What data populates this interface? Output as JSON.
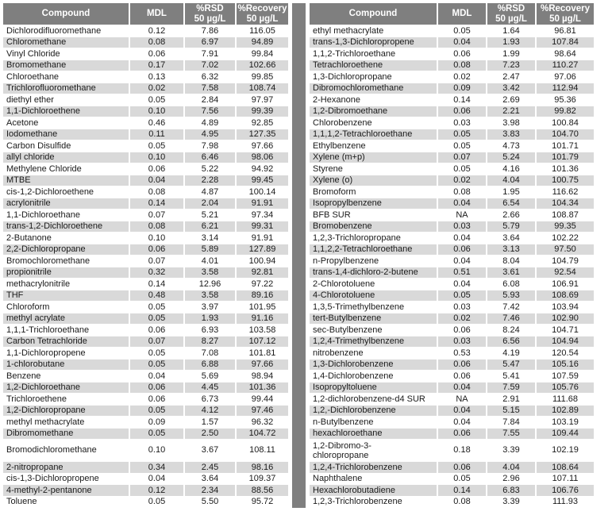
{
  "colors": {
    "header_bg": "#7f7f7f",
    "header_text": "#ffffff",
    "row_bg": "#ffffff",
    "row_alt_bg": "#d9d9d9",
    "divider": "#7f7f7f",
    "text": "#1a1a1a"
  },
  "columns": {
    "compound": "Compound",
    "mdl": "MDL",
    "rsd_label": "%RSD",
    "recovery_label": "%Recovery",
    "concentration": "50 µg/L"
  },
  "left_table": {
    "tall_row_index": 36,
    "rows": [
      [
        "Dichlorodifluoromethane",
        "0.12",
        "7.86",
        "116.05"
      ],
      [
        "Chloromethane",
        "0.08",
        "6.97",
        "94.89"
      ],
      [
        "Vinyl Chloride",
        "0.06",
        "7.91",
        "99.84"
      ],
      [
        "Bromomethane",
        "0.17",
        "7.02",
        "102.66"
      ],
      [
        "Chloroethane",
        "0.13",
        "6.32",
        "99.85"
      ],
      [
        "Trichlorofluoromethane",
        "0.02",
        "7.58",
        "108.74"
      ],
      [
        "diethyl ether",
        "0.05",
        "2.84",
        "97.97"
      ],
      [
        "1,1-Dichloroethene",
        "0.10",
        "7.56",
        "99.39"
      ],
      [
        "Acetone",
        "0.46",
        "4.89",
        "92.85"
      ],
      [
        "Iodomethane",
        "0.11",
        "4.95",
        "127.35"
      ],
      [
        "Carbon Disulfide",
        "0.05",
        "7.98",
        "97.66"
      ],
      [
        "allyl chloride",
        "0.10",
        "6.46",
        "98.06"
      ],
      [
        "Methylene Chloride",
        "0.06",
        "5.22",
        "94.92"
      ],
      [
        "MTBE",
        "0.04",
        "2.28",
        "99.45"
      ],
      [
        "cis-1,2-Dichloroethene",
        "0.08",
        "4.87",
        "100.14"
      ],
      [
        "acrylonitrile",
        "0.14",
        "2.04",
        "91.91"
      ],
      [
        "1,1-Dichloroethane",
        "0.07",
        "5.21",
        "97.34"
      ],
      [
        "trans-1,2-Dichloroethene",
        "0.08",
        "6.21",
        "99.31"
      ],
      [
        "2-Butanone",
        "0.10",
        "3.14",
        "91.91"
      ],
      [
        "2,2-Dichloropropane",
        "0.06",
        "5.89",
        "127.89"
      ],
      [
        "Bromochloromethane",
        "0.07",
        "4.01",
        "100.94"
      ],
      [
        "propionitrile",
        "0.32",
        "3.58",
        "92.81"
      ],
      [
        "methacrylonitrile",
        "0.14",
        "12.96",
        "97.22"
      ],
      [
        "THF",
        "0.48",
        "3.58",
        "89.16"
      ],
      [
        "Chloroform",
        "0.05",
        "3.97",
        "101.95"
      ],
      [
        "methyl acrylate",
        "0.05",
        "1.93",
        "91.16"
      ],
      [
        "1,1,1-Trichloroethane",
        "0.06",
        "6.93",
        "103.58"
      ],
      [
        "Carbon Tetrachloride",
        "0.07",
        "8.27",
        "107.12"
      ],
      [
        "1,1-Dichloropropene",
        "0.05",
        "7.08",
        "101.81"
      ],
      [
        "1-chlorobutane",
        "0.05",
        "6.88",
        "97.66"
      ],
      [
        "Benzene",
        "0.04",
        "5.69",
        "98.94"
      ],
      [
        "1,2-Dichloroethane",
        "0.06",
        "4.45",
        "101.36"
      ],
      [
        "Trichloroethene",
        "0.06",
        "6.73",
        "99.44"
      ],
      [
        "1,2-Dichloropropane",
        "0.05",
        "4.12",
        "97.46"
      ],
      [
        "methyl methacrylate",
        "0.09",
        "1.57",
        "96.32"
      ],
      [
        "Dibromomethane",
        "0.05",
        "2.50",
        "104.72"
      ],
      [
        "Bromodichloromethane",
        "0.10",
        "3.67",
        "108.11"
      ],
      [
        "2-nitropropane",
        "0.34",
        "2.45",
        "98.16"
      ],
      [
        "cis-1,3-Dichloropropene",
        "0.04",
        "3.64",
        "109.37"
      ],
      [
        "4-methyl-2-pentanone",
        "0.12",
        "2.34",
        "88.56"
      ],
      [
        "Toluene",
        "0.05",
        "5.50",
        "95.72"
      ]
    ]
  },
  "right_table": {
    "tall_row_index": 36,
    "rows": [
      [
        "ethyl methacrylate",
        "0.05",
        "1.64",
        "96.81"
      ],
      [
        "trans-1,3-Dichloropropene",
        "0.04",
        "1.93",
        "107.84"
      ],
      [
        "1,1,2-Trichloroethane",
        "0.06",
        "1.99",
        "98.64"
      ],
      [
        "Tetrachloroethene",
        "0.08",
        "7.23",
        "110.27"
      ],
      [
        "1,3-Dichloropropane",
        "0.02",
        "2.47",
        "97.06"
      ],
      [
        "Dibromochloromethane",
        "0.09",
        "3.42",
        "112.94"
      ],
      [
        "2-Hexanone",
        "0.14",
        "2.69",
        "95.36"
      ],
      [
        "1,2-Dibromoethane",
        "0.06",
        "2.21",
        "99.82"
      ],
      [
        "Chlorobenzene",
        "0.03",
        "3.98",
        "100.84"
      ],
      [
        "1,1,1,2-Tetrachloroethane",
        "0.05",
        "3.83",
        "104.70"
      ],
      [
        "Ethylbenzene",
        "0.05",
        "4.73",
        "101.71"
      ],
      [
        "Xylene (m+p)",
        "0.07",
        "5.24",
        "101.79"
      ],
      [
        "Styrene",
        "0.05",
        "4.16",
        "101.36"
      ],
      [
        "Xylene (o)",
        "0.02",
        "4.04",
        "100.75"
      ],
      [
        "Bromoform",
        "0.08",
        "1.95",
        "116.62"
      ],
      [
        "Isopropylbenzene",
        "0.04",
        "6.54",
        "104.34"
      ],
      [
        "BFB SUR",
        "NA",
        "2.66",
        "108.87"
      ],
      [
        "Bromobenzene",
        "0.03",
        "5.79",
        "99.35"
      ],
      [
        "1,2,3-Trichloropropane",
        "0.04",
        "3.64",
        "102.22"
      ],
      [
        "1,1,2,2-Tetrachloroethane",
        "0.06",
        "3.13",
        "97.50"
      ],
      [
        "n-Propylbenzene",
        "0.04",
        "8.04",
        "104.79"
      ],
      [
        "trans-1,4-dichloro-2-butene",
        "0.51",
        "3.61",
        "92.54"
      ],
      [
        "2-Chlorotoluene",
        "0.04",
        "6.08",
        "106.91"
      ],
      [
        "4-Chlorotoluene",
        "0.05",
        "5.93",
        "108.69"
      ],
      [
        "1,3,5-Trimethylbenzene",
        "0.03",
        "7.42",
        "103.94"
      ],
      [
        "tert-Butylbenzene",
        "0.02",
        "7.46",
        "102.90"
      ],
      [
        "sec-Butylbenzene",
        "0.06",
        "8.24",
        "104.71"
      ],
      [
        "1,2,4-Trimethylbenzene",
        "0.03",
        "6.56",
        "104.94"
      ],
      [
        "nitrobenzene",
        "0.53",
        "4.19",
        "120.54"
      ],
      [
        "1,3-Dichlorobenzene",
        "0.06",
        "5.47",
        "105.16"
      ],
      [
        "1,4-Dichlorobenzene",
        "0.06",
        "5.41",
        "107.59"
      ],
      [
        "Isopropyltoluene",
        "0.04",
        "7.59",
        "105.76"
      ],
      [
        "1,2-dichlorobenzene-d4 SUR",
        "NA",
        "2.91",
        "111.68"
      ],
      [
        "1,2,-Dichlorobenzene",
        "0.04",
        "5.15",
        "102.89"
      ],
      [
        "n-Butylbenzene",
        "0.04",
        "7.84",
        "103.19"
      ],
      [
        "hexachloroethane",
        "0.06",
        "7.55",
        "109.44"
      ],
      [
        "1,2-Dibromo-3-chloropropane",
        "0.18",
        "3.39",
        "102.19"
      ],
      [
        "1,2,4-Trichlorobenzene",
        "0.06",
        "4.04",
        "108.64"
      ],
      [
        "Naphthalene",
        "0.05",
        "2.96",
        "107.11"
      ],
      [
        "Hexachlorobutadiene",
        "0.14",
        "6.83",
        "106.76"
      ],
      [
        "1,2,3-Trichlorobenzene",
        "0.08",
        "3.39",
        "111.93"
      ]
    ]
  }
}
